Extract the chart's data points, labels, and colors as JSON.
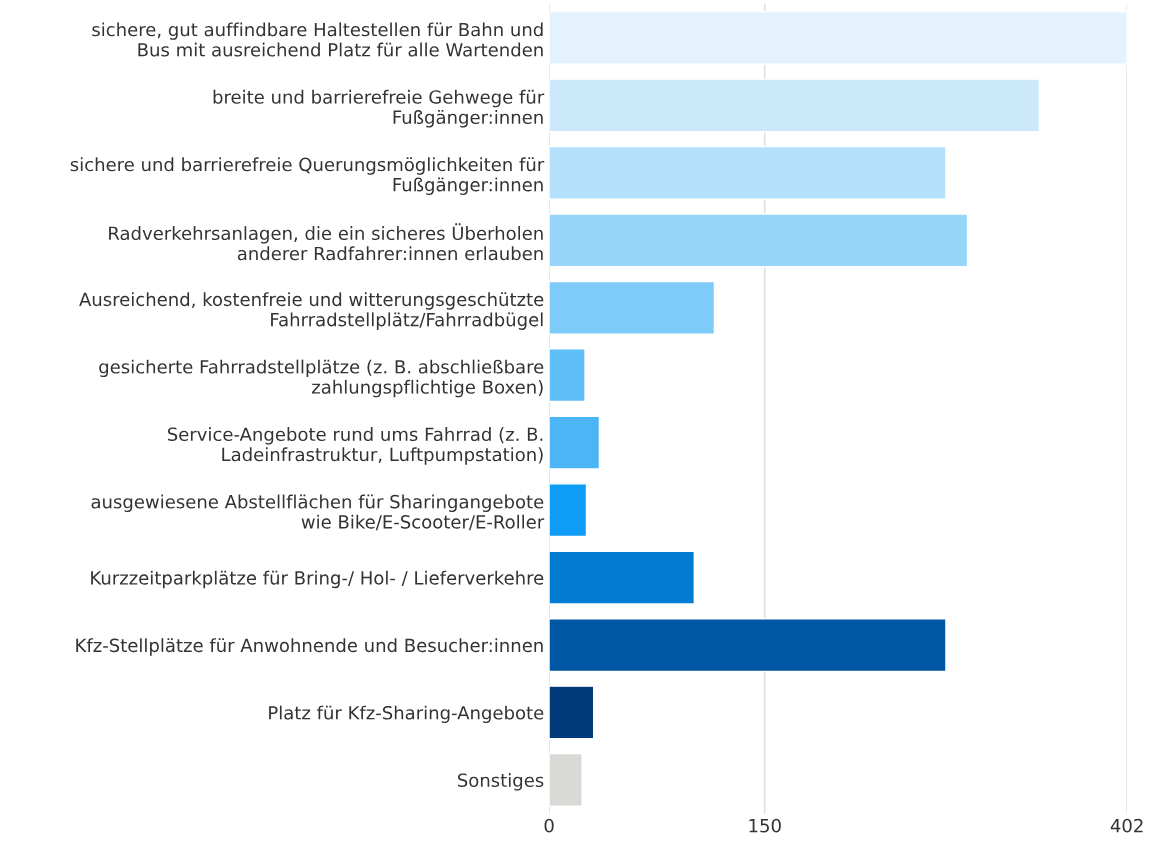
{
  "chart_data": {
    "type": "bar",
    "orientation": "horizontal",
    "categories": [
      "sichere, gut auffindbare Haltestellen für Bahn und\nBus mit ausreichend Platz für alle Wartenden",
      "breite und barrierefreie Gehwege für\nFußgänger:innen",
      "sichere und barrierefreie Querungsmöglichkeiten für\nFußgänger:innen",
      "Radverkehrsanlagen, die ein sicheres Überholen\nanderer Radfahrer:innen erlauben",
      "Ausreichend, kostenfreie und witterungsgeschützte\nFahrradstellplätz/Fahrradbügel",
      "gesicherte Fahrradstellplätze (z. B. abschließbare\nzahlungspflichtige Boxen)",
      "Service-Angebote rund ums Fahrrad (z. B.\nLadeinfrastruktur, Luftpumpstation)",
      "ausgewiesene Abstellflächen für Sharingangebote\nwie Bike/E-Scooter/E-Roller",
      "Kurzzeitparkplätze für Bring-/ Hol- / Lieferverkehre",
      "Kfz-Stellplätze für Anwohnende und Besucher:innen",
      "Platz für Kfz-Sharing-Angebote",
      "Sonstiges"
    ],
    "values": [
      402,
      341,
      276,
      291,
      115,
      25,
      35,
      26,
      101,
      276,
      31,
      23
    ],
    "colors": [
      "#e3f2fd",
      "#cce9fc",
      "#b3e0fb",
      "#97d4fa",
      "#7dcbf9",
      "#5fbff8",
      "#4cb5f5",
      "#0f9cf7",
      "#027bd3",
      "#0057a3",
      "#003a7a",
      "#d9d9d6"
    ],
    "xlim": [
      0,
      402
    ],
    "xticks": [
      0,
      150,
      402
    ],
    "grid": "x"
  }
}
